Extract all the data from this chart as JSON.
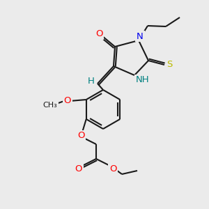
{
  "bg_color": "#ebebeb",
  "bond_color": "#1a1a1a",
  "atom_colors": {
    "O": "#ff0000",
    "N": "#0000ee",
    "S": "#bbbb00",
    "NH": "#008080",
    "H": "#008080",
    "C": "#1a1a1a"
  },
  "lw": 1.5,
  "fs": 9.5,
  "figsize": [
    3.0,
    3.0
  ],
  "dpi": 100
}
